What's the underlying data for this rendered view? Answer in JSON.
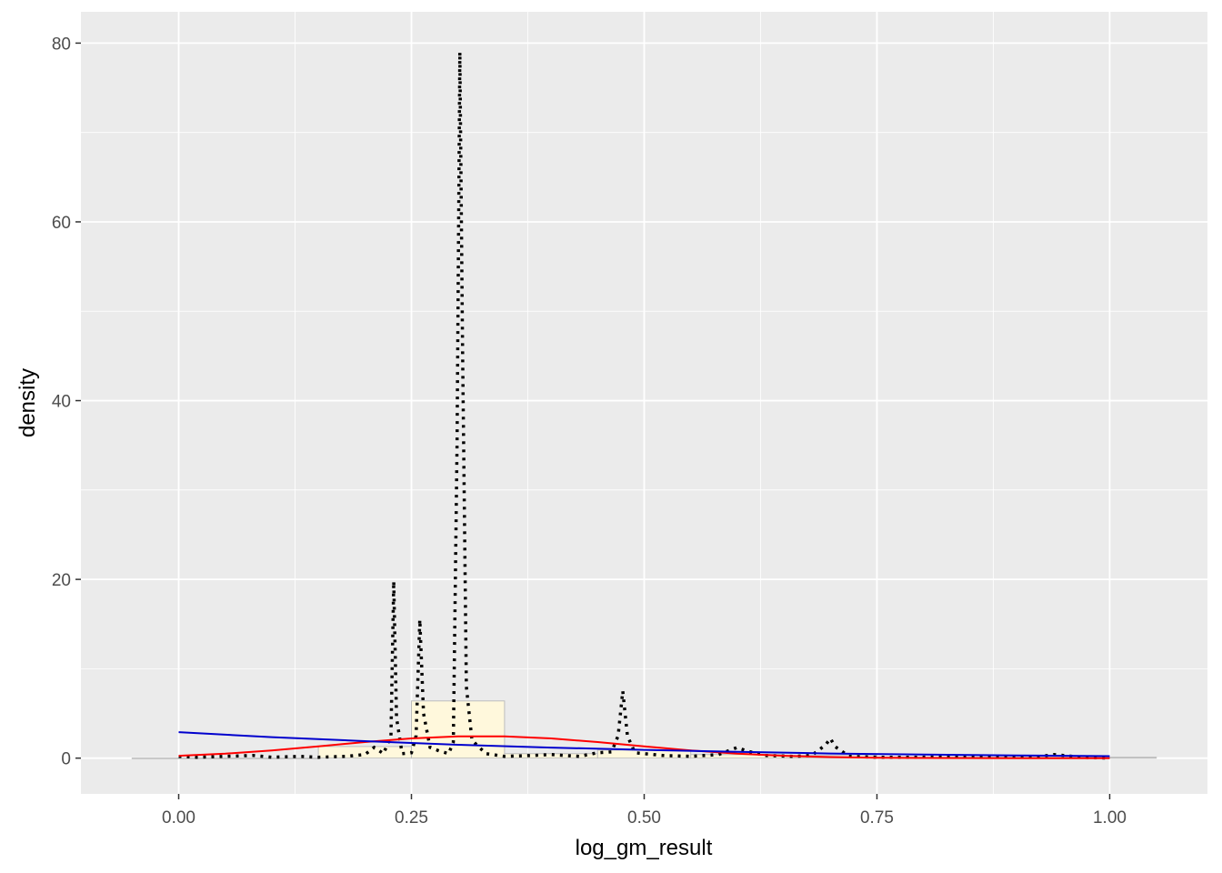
{
  "chart_data": {
    "type": "histogram+density",
    "title": "",
    "xlabel": "log_gm_result",
    "ylabel": "density",
    "xlim": [
      -0.105,
      1.105
    ],
    "ylim": [
      -4.0,
      83.5
    ],
    "x_ticks": [
      0.0,
      0.25,
      0.5,
      0.75,
      1.0
    ],
    "x_tick_labels": [
      "0.00",
      "0.25",
      "0.50",
      "0.75",
      "1.00"
    ],
    "y_ticks": [
      0,
      20,
      40,
      60,
      80
    ],
    "y_tick_labels": [
      "0",
      "20",
      "40",
      "60",
      "80"
    ],
    "grid": true,
    "panel_background": "#ebebeb",
    "histogram": {
      "fill": "#fff8dc",
      "stroke": "#bdbdbd",
      "bins": [
        {
          "x0": -0.05,
          "x1": 0.05,
          "density": 0.0
        },
        {
          "x0": 0.05,
          "x1": 0.15,
          "density": 0.0
        },
        {
          "x0": 0.15,
          "x1": 0.25,
          "density": 1.3
        },
        {
          "x0": 0.25,
          "x1": 0.35,
          "density": 6.4
        },
        {
          "x0": 0.35,
          "x1": 0.45,
          "density": 0.5
        },
        {
          "x0": 0.45,
          "x1": 0.55,
          "density": 0.9
        },
        {
          "x0": 0.55,
          "x1": 0.65,
          "density": 0.4
        },
        {
          "x0": 0.65,
          "x1": 0.75,
          "density": 0.3
        },
        {
          "x0": 0.75,
          "x1": 0.85,
          "density": 0.1
        },
        {
          "x0": 0.85,
          "x1": 0.95,
          "density": 0.1
        },
        {
          "x0": 0.95,
          "x1": 1.05,
          "density": 0.1
        }
      ]
    },
    "series": [
      {
        "style": "dotted",
        "color": "#000000",
        "points": [
          [
            0.0,
            0.2
          ],
          [
            0.02,
            0.1
          ],
          [
            0.05,
            0.2
          ],
          [
            0.08,
            0.3
          ],
          [
            0.1,
            0.1
          ],
          [
            0.13,
            0.2
          ],
          [
            0.15,
            0.1
          ],
          [
            0.18,
            0.2
          ],
          [
            0.2,
            0.4
          ],
          [
            0.21,
            1.2
          ],
          [
            0.22,
            0.5
          ],
          [
            0.228,
            2.5
          ],
          [
            0.231,
            19.8
          ],
          [
            0.234,
            4.5
          ],
          [
            0.24,
            0.5
          ],
          [
            0.25,
            0.6
          ],
          [
            0.255,
            2.5
          ],
          [
            0.259,
            15.5
          ],
          [
            0.263,
            5.0
          ],
          [
            0.27,
            1.2
          ],
          [
            0.28,
            0.8
          ],
          [
            0.29,
            0.5
          ],
          [
            0.295,
            1.8
          ],
          [
            0.299,
            35.0
          ],
          [
            0.302,
            79.0
          ],
          [
            0.305,
            45.0
          ],
          [
            0.309,
            8.0
          ],
          [
            0.315,
            2.0
          ],
          [
            0.33,
            0.5
          ],
          [
            0.35,
            0.2
          ],
          [
            0.38,
            0.3
          ],
          [
            0.4,
            0.4
          ],
          [
            0.43,
            0.2
          ],
          [
            0.45,
            0.6
          ],
          [
            0.465,
            0.7
          ],
          [
            0.472,
            2.5
          ],
          [
            0.477,
            7.5
          ],
          [
            0.482,
            2.5
          ],
          [
            0.49,
            0.6
          ],
          [
            0.52,
            0.3
          ],
          [
            0.55,
            0.2
          ],
          [
            0.58,
            0.4
          ],
          [
            0.6,
            1.2
          ],
          [
            0.61,
            0.8
          ],
          [
            0.63,
            0.3
          ],
          [
            0.66,
            0.2
          ],
          [
            0.68,
            0.3
          ],
          [
            0.695,
            1.5
          ],
          [
            0.7,
            2.2
          ],
          [
            0.705,
            1.3
          ],
          [
            0.72,
            0.2
          ],
          [
            0.75,
            0.1
          ],
          [
            0.8,
            0.1
          ],
          [
            0.85,
            0.2
          ],
          [
            0.88,
            0.2
          ],
          [
            0.92,
            0.1
          ],
          [
            0.94,
            0.4
          ],
          [
            0.97,
            0.1
          ],
          [
            1.0,
            0.0
          ]
        ]
      },
      {
        "style": "solid",
        "color": "#ff0000",
        "points": [
          [
            0.0,
            0.26
          ],
          [
            0.05,
            0.5
          ],
          [
            0.1,
            0.86
          ],
          [
            0.15,
            1.32
          ],
          [
            0.2,
            1.8
          ],
          [
            0.25,
            2.2
          ],
          [
            0.3,
            2.43
          ],
          [
            0.35,
            2.43
          ],
          [
            0.4,
            2.2
          ],
          [
            0.45,
            1.8
          ],
          [
            0.5,
            1.32
          ],
          [
            0.55,
            0.86
          ],
          [
            0.6,
            0.5
          ],
          [
            0.65,
            0.26
          ],
          [
            0.7,
            0.12
          ],
          [
            0.75,
            0.05
          ],
          [
            0.8,
            0.02
          ],
          [
            0.9,
            0.0
          ],
          [
            1.0,
            0.0
          ]
        ]
      },
      {
        "style": "solid",
        "color": "#0000cd",
        "points": [
          [
            0.0,
            2.9
          ],
          [
            0.1,
            2.35
          ],
          [
            0.2,
            1.9
          ],
          [
            0.3,
            1.5
          ],
          [
            0.4,
            1.18
          ],
          [
            0.5,
            0.92
          ],
          [
            0.6,
            0.7
          ],
          [
            0.7,
            0.52
          ],
          [
            0.8,
            0.4
          ],
          [
            0.9,
            0.3
          ],
          [
            1.0,
            0.22
          ]
        ]
      }
    ]
  }
}
